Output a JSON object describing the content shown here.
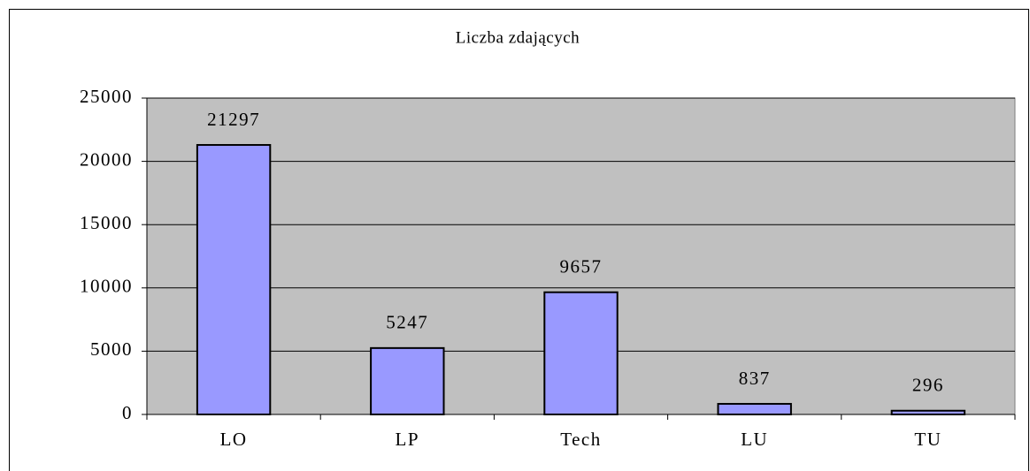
{
  "chart_data": {
    "type": "bar",
    "title": "Liczba zdających",
    "categories": [
      "LO",
      "LP",
      "Tech",
      "LU",
      "TU"
    ],
    "values": [
      21297,
      5247,
      9657,
      837,
      296
    ],
    "color": "#9999ff",
    "plot_background": "#c0c0c0",
    "ylim": [
      0,
      25000
    ],
    "yticks": [
      0,
      5000,
      10000,
      15000,
      20000,
      25000
    ],
    "grid": true
  }
}
